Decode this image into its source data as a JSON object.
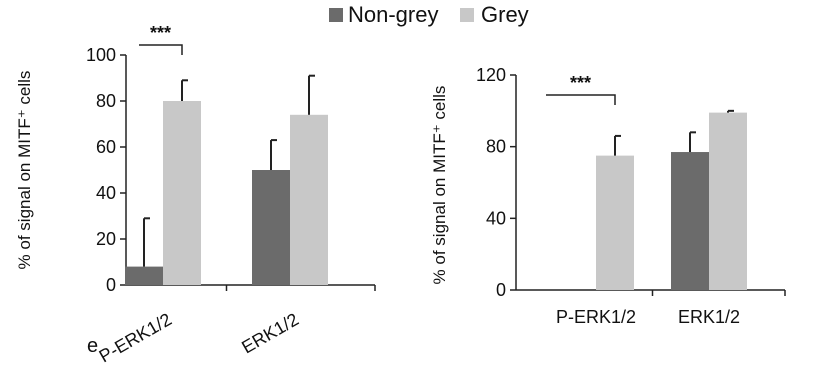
{
  "legend": {
    "items": [
      {
        "label": "Non-grey",
        "color": "#6b6b6b"
      },
      {
        "label": "Grey",
        "color": "#c8c8c8"
      }
    ]
  },
  "stray_char": "e",
  "chart_data": [
    {
      "type": "bar",
      "categories": [
        "P-ERK1/2",
        "ERK1/2"
      ],
      "series": [
        {
          "name": "Non-grey",
          "color": "#6b6b6b",
          "values": [
            8,
            50
          ],
          "error": [
            21,
            13
          ]
        },
        {
          "name": "Grey",
          "color": "#c8c8c8",
          "values": [
            80,
            74
          ],
          "error": [
            9,
            17
          ]
        }
      ],
      "xlabel": "",
      "ylabel": "% of signal on MITF⁺ cells",
      "ylim": [
        0,
        100
      ],
      "yticks": [
        0,
        20,
        40,
        60,
        80,
        100
      ],
      "grid": false,
      "legend": "top",
      "annotations": [
        {
          "text": "***",
          "category": "P-ERK1/2"
        }
      ]
    },
    {
      "type": "bar",
      "categories": [
        "P-ERK1/2",
        "ERK1/2"
      ],
      "series": [
        {
          "name": "Non-grey",
          "color": "#6b6b6b",
          "values": [
            0,
            77
          ],
          "error": [
            0,
            11
          ]
        },
        {
          "name": "Grey",
          "color": "#c8c8c8",
          "values": [
            75,
            99
          ],
          "error": [
            11,
            1
          ]
        }
      ],
      "xlabel": "",
      "ylabel": "% of signal on MITF⁺ cells",
      "ylim": [
        0,
        120
      ],
      "yticks": [
        0,
        40,
        80,
        120
      ],
      "grid": false,
      "legend": "top",
      "annotations": [
        {
          "text": "***",
          "category": "P-ERK1/2"
        }
      ]
    }
  ]
}
